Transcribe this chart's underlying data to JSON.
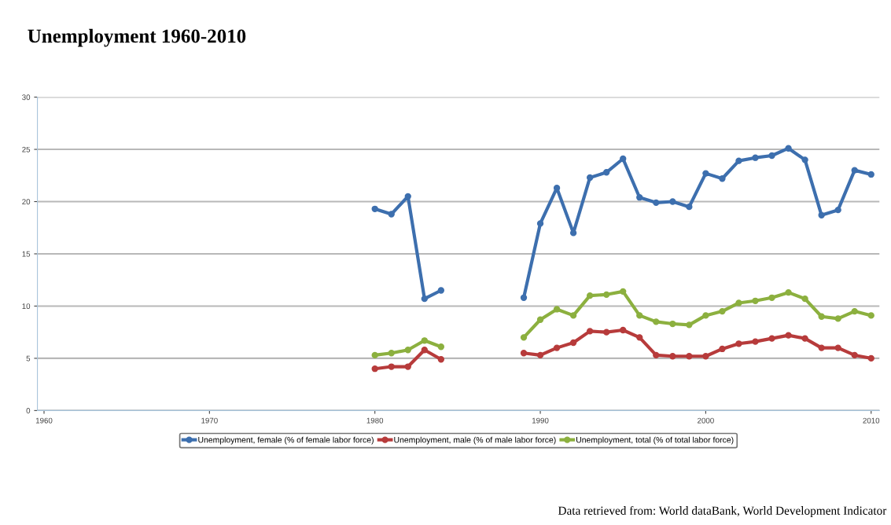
{
  "chart_data": {
    "type": "line",
    "title": "Unemployment 1960-2010",
    "annotations": [
      "Data retrieved from: World dataBank, World Development Indicator"
    ],
    "x": [
      1980,
      1981,
      1982,
      1983,
      1984,
      1985,
      1986,
      1987,
      1988,
      1989,
      1990,
      1991,
      1992,
      1993,
      1994,
      1995,
      1996,
      1997,
      1998,
      1999,
      2000,
      2001,
      2002,
      2003,
      2004,
      2005,
      2006,
      2007,
      2008,
      2009,
      2010
    ],
    "series": [
      {
        "name": "Unemployment, female (% of female labor force)",
        "color": "#3d6fae",
        "values": [
          19.3,
          18.8,
          20.5,
          10.7,
          11.5,
          null,
          null,
          null,
          null,
          10.8,
          17.9,
          21.3,
          17.0,
          22.3,
          22.8,
          24.1,
          20.4,
          19.9,
          20.0,
          19.5,
          22.7,
          22.2,
          23.9,
          24.2,
          24.4,
          25.1,
          24.0,
          18.7,
          19.2,
          23.0,
          22.6
        ]
      },
      {
        "name": "Unemployment, male (% of male labor force)",
        "color": "#b73b3b",
        "values": [
          4.0,
          4.2,
          4.2,
          5.8,
          4.9,
          null,
          null,
          null,
          null,
          5.5,
          5.3,
          6.0,
          6.5,
          7.6,
          7.5,
          7.7,
          7.0,
          5.3,
          5.2,
          5.2,
          5.2,
          5.9,
          6.4,
          6.6,
          6.9,
          7.2,
          6.9,
          6.0,
          6.0,
          5.3,
          5.0
        ]
      },
      {
        "name": "Unemployment, total (% of total labor force)",
        "color": "#8cb03f",
        "values": [
          5.3,
          5.5,
          5.8,
          6.7,
          6.1,
          null,
          null,
          null,
          null,
          7.0,
          8.7,
          9.7,
          9.1,
          11.0,
          11.1,
          11.4,
          9.1,
          8.5,
          8.3,
          8.2,
          9.1,
          9.5,
          10.3,
          10.5,
          10.8,
          11.3,
          10.7,
          9.0,
          8.8,
          9.5,
          9.1
        ]
      }
    ],
    "xlim": [
      1959.6,
      2010.5
    ],
    "xticks": [
      1960,
      1970,
      1980,
      1990,
      2000,
      2010
    ],
    "ylim": [
      0,
      30
    ],
    "yticks": [
      0,
      5,
      10,
      15,
      20,
      25,
      30
    ],
    "grid": "y",
    "legend": "bottom",
    "marker": "circle",
    "line_style": "solid"
  }
}
